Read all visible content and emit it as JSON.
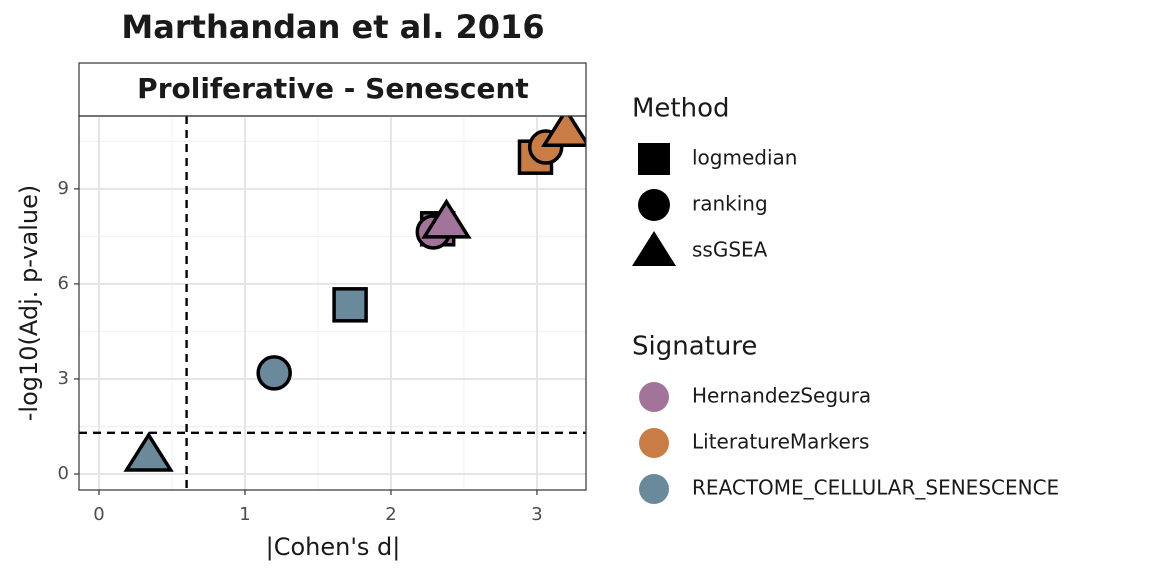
{
  "chart_data": {
    "type": "scatter",
    "title": "Marthandan et al. 2016",
    "panel_label": "Proliferative - Senescent",
    "x_label": "|Cohen's d|",
    "y_label": "-log10(Adj. p-value)",
    "xlim": [
      -0.137,
      3.336
    ],
    "ylim": [
      -0.505,
      11.3
    ],
    "xticks": [
      0,
      1,
      2,
      3
    ],
    "yticks": [
      0,
      3,
      6,
      9
    ],
    "grid": true,
    "xintercept": 0.6,
    "yintercept": 1.3,
    "shape_legend": {
      "title": "Method",
      "items": [
        {
          "name": "logmedian",
          "shape": "square"
        },
        {
          "name": "ranking",
          "shape": "circle"
        },
        {
          "name": "ssGSEA",
          "shape": "triangle"
        }
      ]
    },
    "color_legend_title": "Signature",
    "series": [
      {
        "name": "HernandezSegura",
        "color": "#a3749a",
        "x": [
          2.32,
          2.29,
          2.38
        ],
        "values": [
          7.74,
          7.64,
          7.96
        ]
      },
      {
        "name": "LiteratureMarkers",
        "color": "#c97d45",
        "x": [
          2.99,
          3.06,
          3.2
        ],
        "values": [
          10.0,
          10.32,
          10.85
        ]
      },
      {
        "name": "REACTOME_CELLULAR_SENESCENCE",
        "color": "#6a8a9b",
        "x": [
          1.72,
          1.2,
          0.34
        ],
        "values": [
          5.34,
          3.19,
          0.6
        ]
      }
    ]
  }
}
